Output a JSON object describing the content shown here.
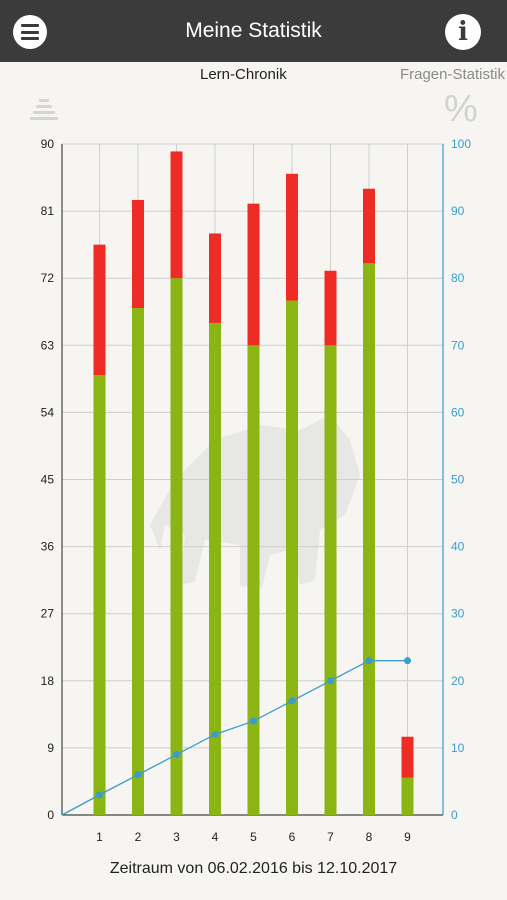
{
  "header": {
    "title": "Meine Statistik",
    "menu_icon": "hamburger-menu-icon",
    "info_icon": "info-icon",
    "info_glyph": "i"
  },
  "tabs": [
    {
      "label": "Lern-Chronik",
      "active": true
    },
    {
      "label": "Fragen-Statistik",
      "active": false
    }
  ],
  "icons": {
    "left": "stacked-bars-icon",
    "right": "percent-icon",
    "right_glyph": "%"
  },
  "chart_data": {
    "type": "bar",
    "categories": [
      "1",
      "2",
      "3",
      "4",
      "5",
      "6",
      "7",
      "8",
      "9"
    ],
    "series": [
      {
        "values": [
          59,
          68,
          72,
          66,
          63,
          69,
          63,
          74,
          5
        ],
        "color": "#8ab512",
        "stack": "main"
      },
      {
        "values": [
          17.5,
          14.5,
          17,
          12,
          19,
          17,
          10,
          10,
          5.5
        ],
        "color": "#ee2b24",
        "stack": "main"
      },
      {
        "type": "line",
        "axis": "right",
        "values": [
          3,
          6,
          9,
          12,
          14,
          17,
          20,
          23,
          23
        ],
        "color": "#3a9ccd"
      }
    ],
    "ylim_left": [
      0,
      90
    ],
    "yticks_left": [
      0,
      9,
      18,
      27,
      36,
      45,
      54,
      63,
      72,
      81,
      90
    ],
    "ylim_right": [
      0,
      100
    ],
    "yticks_right": [
      0,
      10,
      20,
      30,
      40,
      50,
      60,
      70,
      80,
      90,
      100
    ],
    "grid": true,
    "colors": {
      "axis_right": "#3a9ccd",
      "grid": "#cfcfcf"
    },
    "watermark": "elephant-watermark"
  },
  "footer": {
    "period": "Zeitraum von 06.02.2016 bis 12.10.2017"
  }
}
